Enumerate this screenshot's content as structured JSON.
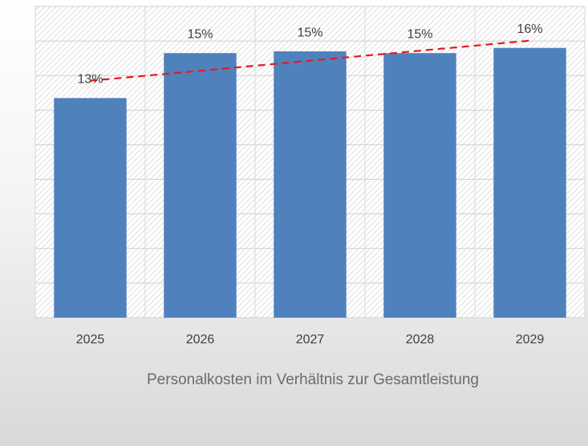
{
  "chart_data": {
    "type": "bar",
    "title": "Personalkosten im Verhältnis zur Gesamtleistung",
    "categories": [
      "2025",
      "2026",
      "2027",
      "2028",
      "2029"
    ],
    "values": [
      12.7,
      15.3,
      15.4,
      15.3,
      15.6
    ],
    "value_labels": [
      "13%",
      "15%",
      "15%",
      "15%",
      "16%"
    ],
    "color": "#4f81bd",
    "ylim": [
      0,
      18
    ],
    "yticks": [
      0,
      2,
      4,
      6,
      8,
      10,
      12,
      14,
      16,
      18
    ],
    "grid": true,
    "trendline": {
      "type": "linear",
      "color": "#e31a1c",
      "dashed": true
    }
  }
}
